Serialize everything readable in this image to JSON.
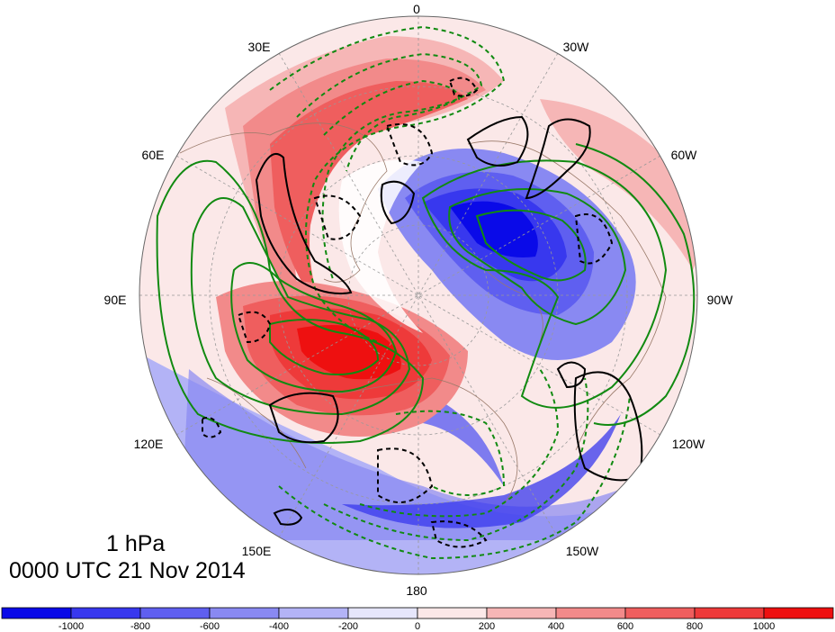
{
  "map": {
    "projection": "north-polar-stereographic",
    "level_label": "1 hPa",
    "valid_time": "0000 UTC 21 Nov 2014",
    "longitude_labels": [
      "0",
      "30W",
      "60W",
      "90W",
      "120W",
      "150W",
      "180",
      "150E",
      "120E",
      "90E",
      "60E",
      "30E"
    ],
    "fill_field": {
      "kind": "shaded",
      "colorbar_ticks": [
        "-1000",
        "-800",
        "-600",
        "-400",
        "-200",
        "0",
        "200",
        "400",
        "600",
        "800",
        "1000"
      ],
      "colors": [
        "#0a0ae8",
        "#3838ee",
        "#5f5ff0",
        "#8989f2",
        "#b3b3f6",
        "#e6e6fb",
        "#fbe8e8",
        "#f6b6b6",
        "#f28a8a",
        "#ef5e5e",
        "#ee3a3a",
        "#ee1010"
      ]
    },
    "contour_colors": {
      "green": "#118a11",
      "black": "#000000",
      "map_outline": "#9a7a6a",
      "grid": "#999999"
    }
  }
}
